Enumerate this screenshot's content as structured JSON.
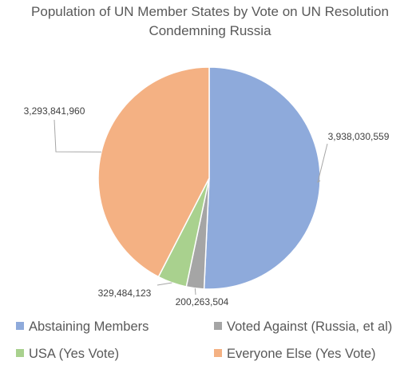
{
  "chart_data": {
    "type": "pie",
    "title_lines": [
      "Population of UN Member States by Vote on UN Resolution",
      "Condemning Russia"
    ],
    "series": [
      {
        "name": "Abstaining Members",
        "value": 3938030559,
        "label": "3,938,030,559",
        "color": "#8eaadb"
      },
      {
        "name": "Voted Against (Russia, et al)",
        "value": 200263504,
        "label": "200,263,504",
        "color": "#a5a5a5"
      },
      {
        "name": "USA (Yes Vote)",
        "value": 329484123,
        "label": "329,484,123",
        "color": "#a9d18e"
      },
      {
        "name": "Everyone Else (Yes Vote)",
        "value": 3293841960,
        "label": "3,293,841,960",
        "color": "#f4b183"
      }
    ],
    "legend_position": "bottom",
    "start_angle": "12 o'clock",
    "direction": "clockwise"
  }
}
